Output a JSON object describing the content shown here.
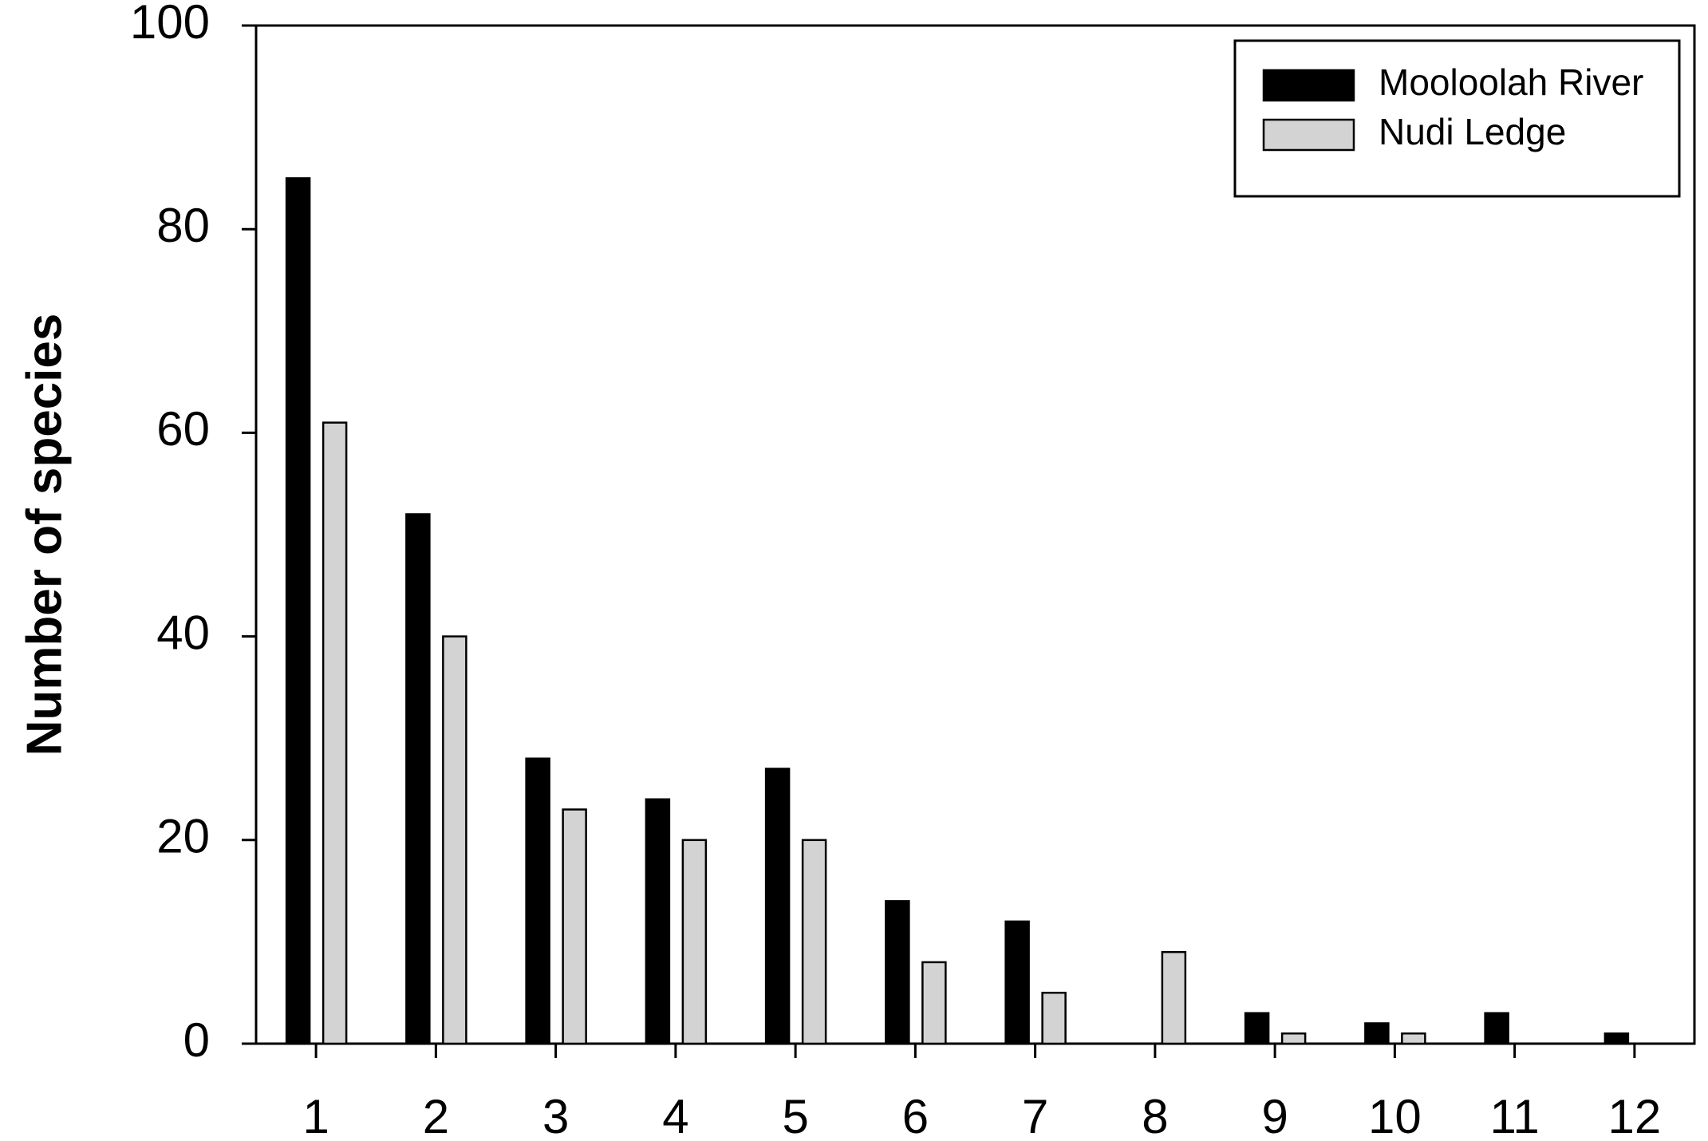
{
  "chart_data": {
    "type": "bar",
    "ylabel": "Number of species",
    "categories": [
      1,
      2,
      3,
      4,
      5,
      6,
      7,
      8,
      9,
      10,
      11,
      12
    ],
    "series": [
      {
        "name": "Mooloolah River",
        "color": "#000000",
        "values": [
          85,
          52,
          28,
          24,
          27,
          14,
          12,
          0,
          3,
          2,
          3,
          1
        ]
      },
      {
        "name": "Nudi Ledge",
        "color": "#d3d3d3",
        "values": [
          61,
          40,
          23,
          20,
          20,
          8,
          5,
          9,
          1,
          1,
          0,
          0
        ]
      }
    ],
    "ylim": [
      0,
      100
    ],
    "yticks": [
      0,
      20,
      40,
      60,
      80,
      100
    ],
    "legend": "upper right"
  }
}
